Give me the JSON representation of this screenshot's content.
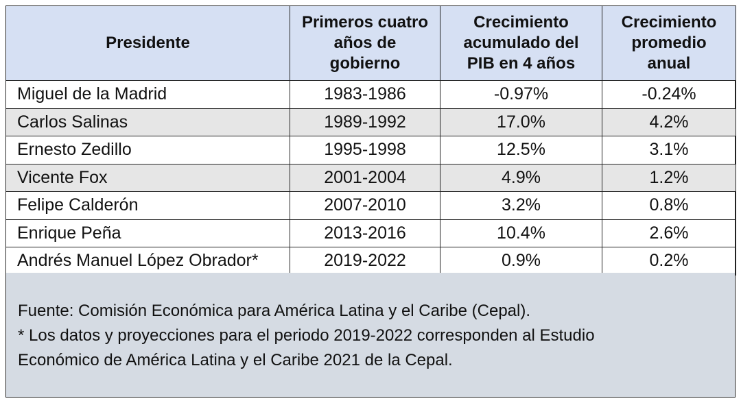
{
  "table": {
    "headers": [
      [
        "Presidente"
      ],
      [
        "Primeros cuatro",
        "años de",
        "gobierno"
      ],
      [
        "Crecimiento",
        "acumulado del",
        "PIB en 4 años"
      ],
      [
        "Crecimiento",
        "promedio",
        "anual"
      ]
    ],
    "rows": [
      {
        "president": "Miguel de la Madrid",
        "period": "1983-1986",
        "cumulative": "-0.97%",
        "annual": "-0.24%"
      },
      {
        "president": "Carlos Salinas",
        "period": "1989-1992",
        "cumulative": "17.0%",
        "annual": "4.2%"
      },
      {
        "president": "Ernesto Zedillo",
        "period": "1995-1998",
        "cumulative": "12.5%",
        "annual": "3.1%"
      },
      {
        "president": "Vicente Fox",
        "period": "2001-2004",
        "cumulative": "4.9%",
        "annual": "1.2%"
      },
      {
        "president": "Felipe Calderón",
        "period": "2007-2010",
        "cumulative": "3.2%",
        "annual": "0.8%"
      },
      {
        "president": "Enrique Peña",
        "period": "2013-2016",
        "cumulative": "10.4%",
        "annual": "2.6%"
      },
      {
        "president": "Andrés Manuel López Obrador*",
        "period": "2019-2022",
        "cumulative": "0.9%",
        "annual": "0.2%"
      }
    ]
  },
  "notes": {
    "source": "Fuente: Comisión Económica para América Latina y el Caribe (Cepal).",
    "footnote_line1": "* Los datos y proyecciones para el periodo 2019-2022 corresponden al Estudio",
    "footnote_line2": "Económico de América Latina y el Caribe 2021 de la Cepal."
  },
  "colors": {
    "header_bg": "#d6e0f3",
    "alt_row_bg": "#e6e6e6",
    "notes_bg": "#d5dbe3"
  }
}
